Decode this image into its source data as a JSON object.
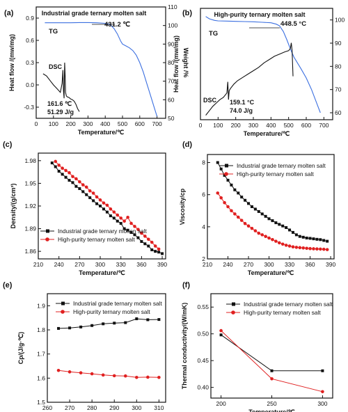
{
  "figure": {
    "panels": [
      {
        "label": "(a)",
        "chart_data": {
          "type": "line",
          "title": "Industrial grade ternary molten salt",
          "xlabel": "Temperature/℃",
          "ylabel": "Heat flow /(mw/mg)",
          "y2label": "Weight /%",
          "x_ticks": [
            0,
            100,
            200,
            300,
            400,
            500,
            600,
            700
          ],
          "y_ticks": [
            "0.9",
            "0.6",
            "0.3",
            "0.0",
            "-0.3"
          ],
          "y2_ticks": [
            "110",
            "100",
            "90",
            "80",
            "70",
            "60",
            "50"
          ],
          "xlim": [
            0,
            750
          ],
          "ylim": [
            -0.45,
            1.05
          ],
          "y2lim": [
            50,
            110
          ],
          "annotations": {
            "tg": "TG",
            "dsc": "DSC",
            "peak_temp": "431.2 ℃",
            "dsc_temp": "161.6 ℃",
            "dsc_heat": "51.29 J/g"
          },
          "series": [
            {
              "name": "TG",
              "axis": "right",
              "color": "#3b6fe0",
              "x": [
                50,
                100,
                150,
                200,
                250,
                300,
                350,
                400,
                420,
                431,
                450,
                470,
                490,
                500,
                520,
                540,
                560,
                580,
                600,
                620,
                640,
                660,
                680,
                700
              ],
              "y": [
                101.5,
                101.5,
                101.5,
                101.5,
                101.6,
                101.6,
                101.5,
                101.2,
                100.8,
                100.2,
                98.5,
                95.5,
                91.5,
                90,
                89,
                88,
                86.5,
                84,
                80,
                75,
                69,
                63,
                57,
                51
              ]
            },
            {
              "name": "DSC",
              "axis": "left",
              "color": "#111111",
              "x": [
                40,
                60,
                80,
                100,
                120,
                140,
                150,
                155,
                158,
                161.6,
                163,
                165,
                168,
                170,
                175,
                180,
                190,
                200,
                210,
                220,
                230,
                240,
                250
              ],
              "y": [
                0.15,
                0.12,
                0.06,
                0.0,
                -0.05,
                -0.1,
                0.02,
                0.2,
                -0.08,
                -0.18,
                0.05,
                0.3,
                0.1,
                -0.1,
                -0.15,
                -0.16,
                -0.17,
                -0.19,
                -0.2,
                -0.22,
                -0.26,
                -0.32,
                -0.36
              ]
            }
          ]
        }
      },
      {
        "label": "(b)",
        "chart_data": {
          "type": "line",
          "title": "High-purity ternary molten salt",
          "xlabel": "Temperature/℃",
          "ylabel": "Heat flow /(mw/mg)",
          "y2label": "Weight /%",
          "x_ticks": [
            0,
            100,
            200,
            300,
            400,
            500,
            600,
            700
          ],
          "y2_ticks": [
            "100",
            "90",
            "80",
            "70",
            "60"
          ],
          "xlim": [
            0,
            750
          ],
          "ylim": [
            0,
            1
          ],
          "y2lim": [
            57,
            105
          ],
          "annotations": {
            "tg": "TG",
            "dsc": "DSC",
            "peak_temp": "448.5 °C",
            "dsc_temp": "159.1 °C",
            "dsc_heat": "74.0 J/g"
          },
          "series": [
            {
              "name": "TG",
              "axis": "right",
              "color": "#3b6fe0",
              "x": [
                30,
                50,
                80,
                100,
                150,
                200,
                250,
                300,
                350,
                400,
                430,
                448,
                470,
                490,
                510,
                530,
                550,
                570,
                600,
                630,
                660,
                680
              ],
              "y": [
                101.5,
                100.5,
                99.8,
                99.6,
                99.5,
                99.4,
                99.3,
                99.2,
                99,
                98.8,
                98.2,
                97.5,
                95,
                91.5,
                87.5,
                84,
                81.5,
                79,
                75,
                70,
                64,
                60
              ]
            },
            {
              "name": "DSC",
              "axis": "left",
              "color": "#111111",
              "x": [
                30,
                50,
                70,
                90,
                110,
                130,
                150,
                155,
                159,
                163,
                170,
                190,
                210,
                240,
                270,
                300,
                330,
                360,
                390,
                420,
                450,
                480,
                500,
                510,
                515,
                520,
                525
              ],
              "y": [
                0.04,
                0.08,
                0.12,
                0.15,
                0.18,
                0.2,
                0.24,
                0.34,
                0.18,
                0.26,
                0.28,
                0.32,
                0.35,
                0.38,
                0.41,
                0.44,
                0.47,
                0.51,
                0.54,
                0.57,
                0.59,
                0.61,
                0.62,
                0.64,
                0.69,
                0.62,
                0.39
              ]
            }
          ]
        }
      },
      {
        "label": "(c)",
        "chart_data": {
          "type": "line",
          "xlabel": "Temperature/℃",
          "ylabel": "Density/(g/cm³)",
          "x_ticks": [
            210,
            240,
            270,
            300,
            330,
            360,
            390
          ],
          "y_ticks": [
            "1.86",
            "1.89",
            "1.92",
            "1.95",
            "1.98"
          ],
          "xlim": [
            210,
            395
          ],
          "ylim": [
            1.85,
            1.99
          ],
          "legend": "bottom-left",
          "series": [
            {
              "name": "Industrial grade ternary molten salt",
              "color": "#111111",
              "x": [
                230,
                235,
                240,
                245,
                250,
                255,
                260,
                265,
                270,
                275,
                280,
                285,
                290,
                295,
                300,
                305,
                310,
                315,
                320,
                325,
                330,
                335,
                340,
                345,
                350,
                355,
                360,
                365,
                370,
                375,
                380,
                385,
                390
              ],
              "y": [
                1.977,
                1.972,
                1.966,
                1.962,
                1.958,
                1.954,
                1.951,
                1.946,
                1.943,
                1.939,
                1.935,
                1.931,
                1.927,
                1.923,
                1.92,
                1.916,
                1.912,
                1.907,
                1.904,
                1.9,
                1.897,
                1.89,
                1.888,
                1.885,
                1.882,
                1.878,
                1.873,
                1.87,
                1.867,
                1.862,
                1.86,
                1.859,
                1.857
              ]
            },
            {
              "name": "High-purity ternary molten salt",
              "color": "#e02020",
              "x": [
                235,
                240,
                245,
                250,
                255,
                260,
                265,
                270,
                275,
                280,
                285,
                290,
                295,
                300,
                305,
                310,
                315,
                320,
                325,
                330,
                335,
                340,
                345,
                350,
                355,
                360,
                365,
                370,
                375,
                380,
                385
              ],
              "y": [
                1.979,
                1.974,
                1.97,
                1.967,
                1.964,
                1.959,
                1.956,
                1.952,
                1.948,
                1.945,
                1.94,
                1.937,
                1.932,
                1.928,
                1.924,
                1.921,
                1.916,
                1.912,
                1.908,
                1.904,
                1.9,
                1.905,
                1.897,
                1.893,
                1.889,
                1.884,
                1.88,
                1.876,
                1.872,
                1.867,
                1.863
              ]
            }
          ]
        }
      },
      {
        "label": "(d)",
        "chart_data": {
          "type": "line",
          "xlabel": "Temperature/℃",
          "ylabel": "Viscosity/cp",
          "x_ticks": [
            210,
            240,
            270,
            300,
            330,
            360,
            390
          ],
          "y_ticks": [
            "2",
            "4",
            "6",
            "8"
          ],
          "xlim": [
            210,
            395
          ],
          "ylim": [
            2,
            8.5
          ],
          "legend": "top-right",
          "series": [
            {
              "name": "Industrial grade ternary molten salt",
              "color": "#111111",
              "x": [
                225,
                230,
                235,
                240,
                245,
                250,
                255,
                260,
                265,
                270,
                275,
                280,
                285,
                290,
                295,
                300,
                305,
                310,
                315,
                320,
                325,
                330,
                335,
                340,
                345,
                350,
                355,
                360,
                365,
                370,
                375,
                380,
                385
              ],
              "y": [
                8.0,
                7.6,
                7.2,
                6.9,
                6.6,
                6.3,
                6.1,
                5.85,
                5.65,
                5.45,
                5.25,
                5.1,
                4.95,
                4.8,
                4.65,
                4.5,
                4.38,
                4.25,
                4.15,
                4.05,
                3.95,
                3.8,
                3.65,
                3.5,
                3.4,
                3.35,
                3.3,
                3.28,
                3.25,
                3.22,
                3.2,
                3.15,
                3.1
              ]
            },
            {
              "name": "High-purity ternary molten salt",
              "color": "#e02020",
              "x": [
                225,
                230,
                235,
                240,
                245,
                250,
                255,
                260,
                265,
                270,
                275,
                280,
                285,
                290,
                295,
                300,
                305,
                310,
                315,
                320,
                325,
                330,
                335,
                340,
                345,
                350,
                355,
                360,
                365,
                370,
                375,
                380,
                385
              ],
              "y": [
                6.1,
                5.8,
                5.5,
                5.25,
                5.0,
                4.8,
                4.6,
                4.4,
                4.2,
                4.05,
                3.9,
                3.75,
                3.6,
                3.5,
                3.4,
                3.3,
                3.2,
                3.1,
                3.0,
                2.92,
                2.85,
                2.8,
                2.75,
                2.72,
                2.7,
                2.68,
                2.66,
                2.64,
                2.63,
                2.62,
                2.61,
                2.6,
                2.58
              ]
            }
          ]
        }
      },
      {
        "label": "(e)",
        "chart_data": {
          "type": "line",
          "xlabel": "Temperature/℃",
          "ylabel": "Cp/(J/g·℃)",
          "x_ticks": [
            260,
            270,
            280,
            290,
            300,
            310
          ],
          "y_ticks": [
            "1.5",
            "1.6",
            "1.7",
            "1.8",
            "1.9"
          ],
          "xlim": [
            260,
            313
          ],
          "ylim": [
            1.5,
            1.95
          ],
          "legend": "top-left",
          "series": [
            {
              "name": "Industrial grade ternary molten salt",
              "color": "#111111",
              "x": [
                265,
                270,
                275,
                280,
                285,
                290,
                295,
                300,
                305,
                310
              ],
              "y": [
                1.806,
                1.808,
                1.812,
                1.818,
                1.825,
                1.828,
                1.83,
                1.846,
                1.842,
                1.843
              ]
            },
            {
              "name": "High-purity ternary molten salt",
              "color": "#e02020",
              "x": [
                265,
                270,
                275,
                280,
                285,
                290,
                295,
                300,
                305,
                310
              ],
              "y": [
                1.632,
                1.626,
                1.622,
                1.618,
                1.613,
                1.61,
                1.609,
                1.603,
                1.604,
                1.603
              ]
            }
          ]
        }
      },
      {
        "label": "(f)",
        "chart_data": {
          "type": "line",
          "xlabel": "Temperature/℃",
          "ylabel": "Thermal conductivity/(W/mK)",
          "x_ticks": [
            200,
            250,
            300
          ],
          "y_ticks": [
            "0.40",
            "0.45",
            "0.50",
            "0.55"
          ],
          "xlim": [
            190,
            310
          ],
          "ylim": [
            0.38,
            0.575
          ],
          "legend": "top-right",
          "series": [
            {
              "name": "Industrial grade ternary molten salt",
              "color": "#111111",
              "x": [
                200,
                250,
                300
              ],
              "y": [
                0.498,
                0.431,
                0.431
              ]
            },
            {
              "name": "High-purity ternary molten salt",
              "color": "#e02020",
              "x": [
                200,
                250,
                300
              ],
              "y": [
                0.506,
                0.416,
                0.392
              ]
            }
          ]
        }
      }
    ]
  }
}
